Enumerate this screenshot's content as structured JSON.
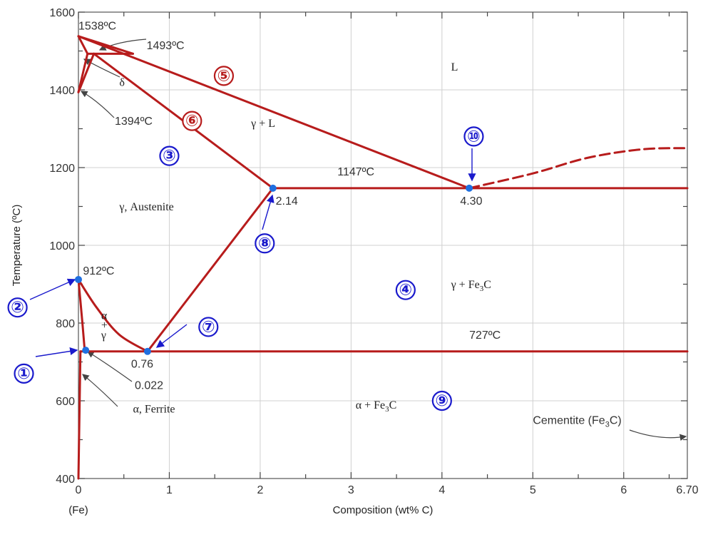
{
  "chart_data": {
    "type": "line",
    "xlabel": "Composition (wt% C)",
    "ylabel": "Temperature (ºC)",
    "xlim": [
      0,
      6.7
    ],
    "ylim": [
      400,
      1600
    ],
    "x_ticks": [
      "0",
      "1",
      "2",
      "3",
      "4",
      "5",
      "6",
      "6.70"
    ],
    "x_tick_values": [
      0,
      1,
      2,
      3,
      4,
      5,
      6,
      6.7
    ],
    "x_sublabel": "(Fe)",
    "y_ticks": [
      "400",
      "600",
      "800",
      "1000",
      "1200",
      "1400",
      "1600"
    ],
    "y_tick_values": [
      400,
      600,
      800,
      1000,
      1200,
      1400,
      1600
    ],
    "grid": true,
    "colors": {
      "phase_line": "#b71c1c",
      "marker": "#1f6fe0",
      "callout": "#1a1acc",
      "callout_red": "#b71c1c"
    },
    "series": [
      {
        "style": "solid",
        "points": [
          [
            0,
            1538
          ],
          [
            4.3,
            1147
          ]
        ]
      },
      {
        "style": "dashed",
        "points": [
          [
            4.3,
            1147
          ],
          [
            5.0,
            1185
          ],
          [
            5.6,
            1225
          ],
          [
            6.2,
            1247
          ],
          [
            6.7,
            1250
          ]
        ]
      },
      {
        "style": "solid",
        "points": [
          [
            0.17,
            1493
          ],
          [
            2.14,
            1147
          ]
        ]
      },
      {
        "style": "solid",
        "points": [
          [
            2.14,
            1147
          ],
          [
            6.7,
            1147
          ]
        ]
      },
      {
        "style": "solid",
        "points": [
          [
            0.76,
            727
          ],
          [
            2.14,
            1147
          ]
        ]
      },
      {
        "style": "solid",
        "points": [
          [
            0,
            912
          ],
          [
            0.2,
            840
          ],
          [
            0.45,
            770
          ],
          [
            0.76,
            727
          ]
        ]
      },
      {
        "style": "solid",
        "points": [
          [
            0,
            912
          ],
          [
            0.04,
            810
          ],
          [
            0.07,
            727
          ]
        ]
      },
      {
        "style": "solid",
        "points": [
          [
            0.022,
            727
          ],
          [
            0.0,
            400
          ]
        ]
      },
      {
        "style": "solid",
        "points": [
          [
            0.022,
            727
          ],
          [
            6.7,
            727
          ]
        ]
      },
      {
        "style": "solid",
        "points": [
          [
            0,
            1538
          ],
          [
            0.1,
            1493
          ]
        ]
      },
      {
        "style": "solid",
        "points": [
          [
            0,
            1538
          ],
          [
            0.6,
            1493
          ]
        ]
      },
      {
        "style": "solid",
        "points": [
          [
            0.1,
            1493
          ],
          [
            0.6,
            1493
          ]
        ]
      },
      {
        "style": "solid",
        "points": [
          [
            0.1,
            1493
          ],
          [
            0,
            1394
          ]
        ]
      },
      {
        "style": "solid",
        "points": [
          [
            0.17,
            1493
          ],
          [
            0,
            1394
          ]
        ]
      }
    ],
    "markers": [
      {
        "x": 0,
        "y": 912
      },
      {
        "x": 0.08,
        "y": 730
      },
      {
        "x": 0.76,
        "y": 727
      },
      {
        "x": 2.14,
        "y": 1147
      },
      {
        "x": 4.3,
        "y": 1147
      }
    ],
    "annotations": [
      {
        "text": "1538ºC",
        "x": 0.0,
        "y": 1555
      },
      {
        "text": "1493ºC",
        "x": 0.75,
        "y": 1505
      },
      {
        "text": "1394ºC",
        "x": 0.4,
        "y": 1310
      },
      {
        "text": "912ºC",
        "x": 0.05,
        "y": 925
      },
      {
        "text": "1147ºC",
        "x": 2.85,
        "y": 1180
      },
      {
        "text": "727ºC",
        "x": 4.3,
        "y": 760
      },
      {
        "text": "2.14",
        "x": 2.17,
        "y": 1105
      },
      {
        "text": "4.30",
        "x": 4.2,
        "y": 1105
      },
      {
        "text": "0.76",
        "x": 0.58,
        "y": 685
      },
      {
        "text": "0.022",
        "x": 0.62,
        "y": 630
      },
      {
        "text": "Cementite (Fe3C)",
        "x": 5.0,
        "y": 540
      }
    ],
    "phase_labels": [
      {
        "text": "L",
        "x": 4.1,
        "y": 1450
      },
      {
        "text": "δ",
        "x": 0.45,
        "y": 1410
      },
      {
        "text": "γ + L",
        "x": 1.9,
        "y": 1305
      },
      {
        "text": "γ, Austenite",
        "x": 0.45,
        "y": 1090
      },
      {
        "text": "γ + Fe3C",
        "x": 4.1,
        "y": 890
      },
      {
        "text": "α + Fe3C",
        "x": 3.05,
        "y": 580
      },
      {
        "text": "α, Ferrite",
        "x": 0.6,
        "y": 570
      },
      {
        "text": "α",
        "x": 0.25,
        "y": 810
      },
      {
        "text": "+",
        "x": 0.25,
        "y": 785
      },
      {
        "text": "γ",
        "x": 0.25,
        "y": 760
      }
    ],
    "callouts": [
      {
        "label": "①",
        "color": "blue",
        "x": -0.6,
        "y": 670
      },
      {
        "label": "②",
        "color": "blue",
        "x": -0.67,
        "y": 840
      },
      {
        "label": "③",
        "color": "blue",
        "x": 1.0,
        "y": 1230
      },
      {
        "label": "④",
        "color": "blue",
        "x": 3.6,
        "y": 885
      },
      {
        "label": "⑤",
        "color": "red",
        "x": 1.6,
        "y": 1436
      },
      {
        "label": "⑥",
        "color": "red",
        "x": 1.25,
        "y": 1320
      },
      {
        "label": "⑦",
        "color": "blue",
        "x": 1.43,
        "y": 790
      },
      {
        "label": "⑧",
        "color": "blue",
        "x": 2.05,
        "y": 1005
      },
      {
        "label": "⑨",
        "color": "blue",
        "x": 4.0,
        "y": 600
      },
      {
        "label": "⑩",
        "color": "blue",
        "x": 4.35,
        "y": 1280
      }
    ]
  }
}
